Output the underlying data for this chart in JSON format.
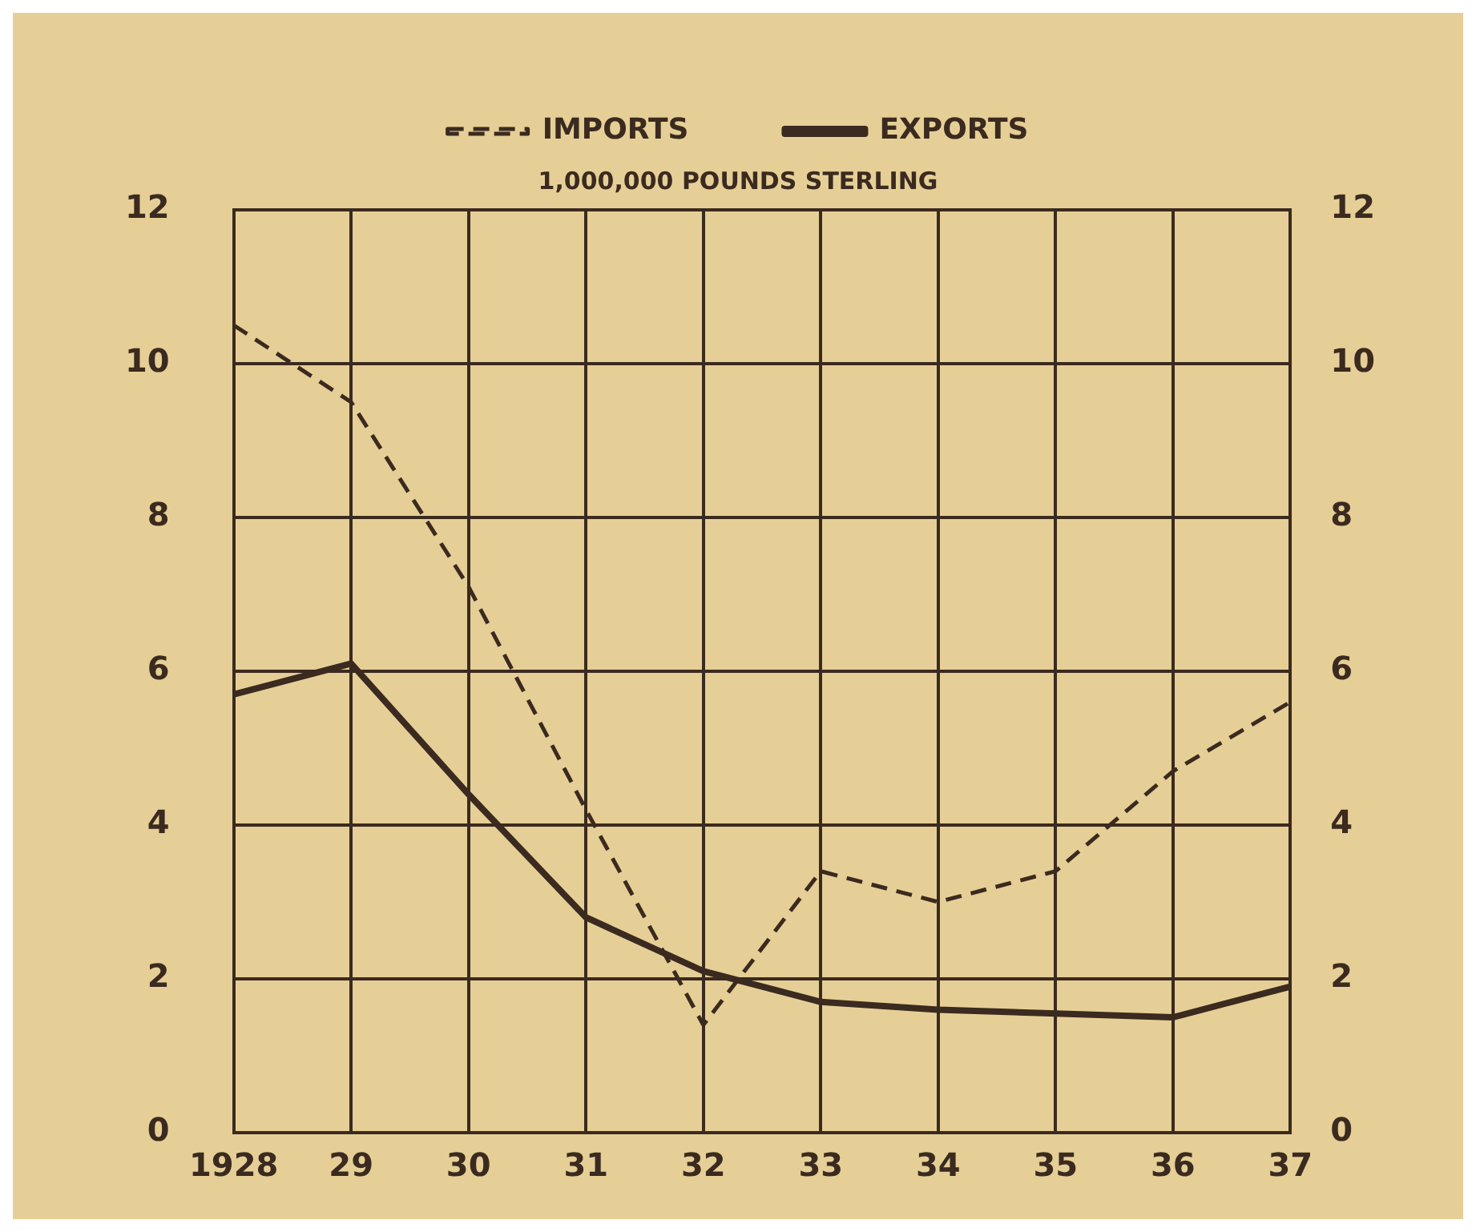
{
  "chart_data": {
    "type": "line",
    "title": "1,000,000 POUNDS STERLING",
    "categories": [
      "1928",
      "29",
      "30",
      "31",
      "32",
      "33",
      "34",
      "35",
      "36",
      "37"
    ],
    "series": [
      {
        "name": "IMPORTS",
        "color": "#3b2a1f",
        "line_style": "dashed",
        "values": [
          10.5,
          9.5,
          7.1,
          4.2,
          1.4,
          3.4,
          3.0,
          3.4,
          4.7,
          5.6
        ]
      },
      {
        "name": "EXPORTS",
        "color": "#3b2a1f",
        "line_style": "solid",
        "values": [
          5.7,
          6.1,
          4.4,
          2.8,
          2.1,
          1.7,
          1.6,
          1.55,
          1.5,
          1.9
        ]
      }
    ],
    "ylim": [
      0,
      12
    ],
    "yticks": [
      0,
      2,
      4,
      6,
      8,
      10,
      12
    ],
    "y2lim": [
      0,
      12
    ],
    "y2ticks": [
      0,
      2,
      4,
      6,
      8,
      10,
      12
    ],
    "grid": true,
    "legend": "top",
    "marker": "none"
  }
}
